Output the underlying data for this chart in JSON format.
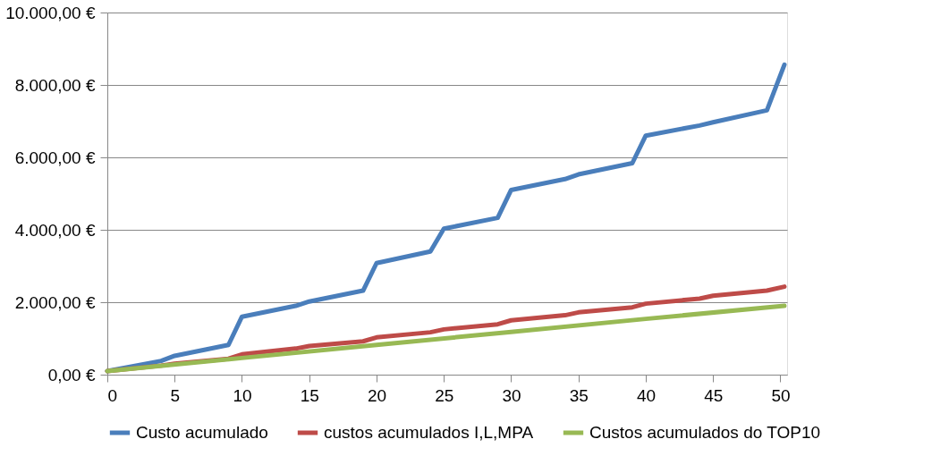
{
  "chart_data": {
    "type": "line",
    "xlim": [
      0,
      50.5
    ],
    "xticks": [
      0,
      5,
      10,
      15,
      20,
      25,
      30,
      35,
      40,
      45,
      50
    ],
    "ylim": [
      0,
      10000
    ],
    "yticks": [
      {
        "value": 0,
        "label": "0,00 €"
      },
      {
        "value": 2000,
        "label": "2.000,00 €"
      },
      {
        "value": 4000,
        "label": "4.000,00 €"
      },
      {
        "value": 6000,
        "label": "6.000,00 €"
      },
      {
        "value": 8000,
        "label": "8.000,00 €"
      },
      {
        "value": 10000,
        "label": "10.000,00 €"
      }
    ],
    "grid": "y",
    "legend": "bottom",
    "marker": "none",
    "line_style": "solid",
    "series": [
      {
        "name": "Custo acumulado",
        "color": "#4a7ebb",
        "x": [
          0,
          4,
          5,
          9,
          10,
          14,
          15,
          19,
          20,
          24,
          25,
          29,
          30,
          34,
          35,
          39,
          40,
          44,
          45,
          49,
          50.3
        ],
        "values": [
          100,
          380,
          520,
          820,
          1600,
          1900,
          2020,
          2320,
          3080,
          3400,
          4030,
          4330,
          5100,
          5400,
          5530,
          5840,
          6600,
          6880,
          6970,
          7300,
          8560
        ]
      },
      {
        "name": "custos acumulados I,L,MPA",
        "color": "#be4b48",
        "x": [
          0,
          4,
          5,
          9,
          10,
          14,
          15,
          19,
          20,
          24,
          25,
          29,
          30,
          34,
          35,
          39,
          40,
          44,
          45,
          49,
          50.3
        ],
        "values": [
          100,
          250,
          300,
          440,
          560,
          720,
          790,
          920,
          1030,
          1170,
          1250,
          1390,
          1500,
          1640,
          1720,
          1860,
          1960,
          2100,
          2180,
          2320,
          2430
        ]
      },
      {
        "name": "Custos acumulados do TOP10",
        "color": "#98b954",
        "x": [
          0,
          10,
          20,
          30,
          40,
          50.3
        ],
        "values": [
          100,
          460,
          820,
          1180,
          1540,
          1900
        ]
      }
    ]
  }
}
